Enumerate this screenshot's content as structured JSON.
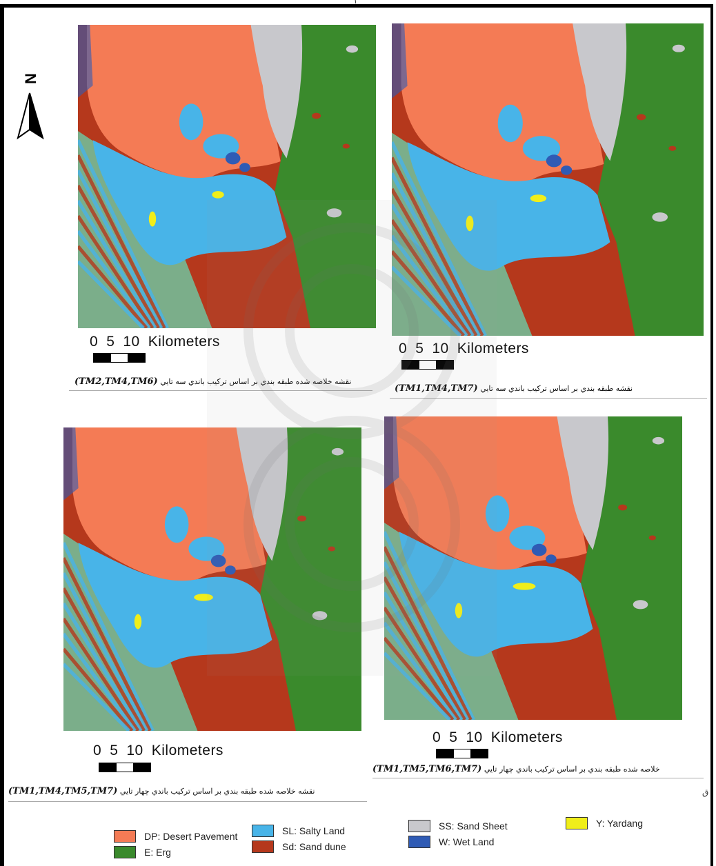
{
  "page_number": "١",
  "side_mark": "ق",
  "colors": {
    "desert_pavement": "#f47b55",
    "erg": "#3a8a2c",
    "salty_land": "#48b4e8",
    "sand_dune": "#b5381c",
    "sand_sheet": "#c8c8cc",
    "wet_land": "#2f5bb5",
    "yardang": "#f0ee1a",
    "stripe": "#7bae8a"
  },
  "north_arrow": {
    "letter": "N"
  },
  "scale": {
    "ticks": [
      "0",
      "5",
      "10"
    ],
    "unit": "Kilometers"
  },
  "maps": [
    {
      "caption_prefix": "نقشه خلاصه شده طبقه بندي بر اساس ترکيب باندي سه تايي",
      "caption_bands": "(TM2,TM4,TM6)"
    },
    {
      "caption_prefix": "نقشه طبقه بندي بر اساس ترکيب باندي سه تايي",
      "caption_bands": "(TM1,TM4,TM7)"
    },
    {
      "caption_prefix": "نقشه خلاصه شده طبقه بندي بر اساس ترکيب باندي چهار تايي",
      "caption_bands": "(TM1,TM4,TM5,TM7)"
    },
    {
      "caption_prefix": "خلاصه شده طبقه بندي بر اساس ترکيب باندي چهار تايي",
      "caption_bands": "(TM1,TM5,TM6,TM7)"
    }
  ],
  "legend": [
    {
      "code": "DP",
      "label": "DP: Desert Pavement",
      "color": "#f47b55"
    },
    {
      "code": "E",
      "label": "E: Erg",
      "color": "#3a8a2c"
    },
    {
      "code": "SL",
      "label": "SL: Salty Land",
      "color": "#48b4e8"
    },
    {
      "code": "Sd",
      "label": "Sd: Sand dune",
      "color": "#b5381c"
    },
    {
      "code": "SS",
      "label": "SS: Sand Sheet",
      "color": "#c8c8cc"
    },
    {
      "code": "W",
      "label": "W: Wet Land",
      "color": "#2f5bb5"
    },
    {
      "code": "Y",
      "label": "Y: Yardang",
      "color": "#f0ee1a"
    }
  ]
}
